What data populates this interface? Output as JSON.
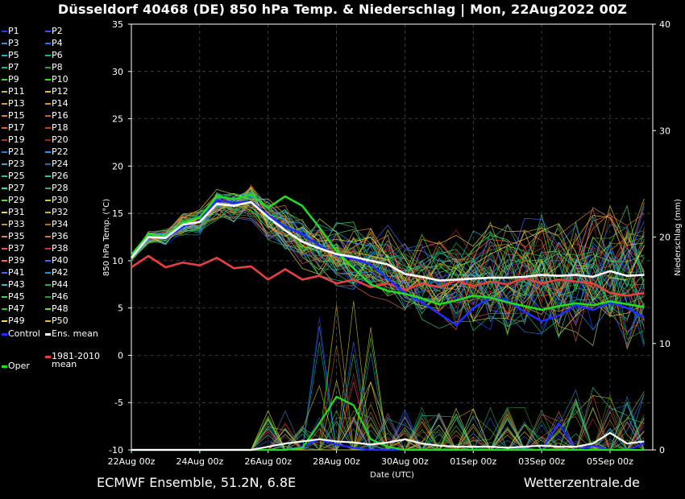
{
  "title": "Düsseldorf 40468 (DE)  850 hPa Temp. & Niederschlag | Mon, 22Aug2022 00Z",
  "footer": {
    "left": "ECMWF Ensemble, 51.2N, 6.8E",
    "right": "Wetterzentrale.de"
  },
  "legend": {
    "members": [
      "P1",
      "P2",
      "P3",
      "P4",
      "P5",
      "P6",
      "P7",
      "P8",
      "P9",
      "P10",
      "P11",
      "P12",
      "P13",
      "P14",
      "P15",
      "P16",
      "P17",
      "P18",
      "P19",
      "P20",
      "P21",
      "P22",
      "P23",
      "P24",
      "P25",
      "P26",
      "P27",
      "P28",
      "P29",
      "P30",
      "P31",
      "P32",
      "P33",
      "P34",
      "P35",
      "P36",
      "P37",
      "P38",
      "P39",
      "P40",
      "P41",
      "P42",
      "P43",
      "P44",
      "P45",
      "P46",
      "P47",
      "P48",
      "P49",
      "P50"
    ],
    "member_colors": [
      "#1f3bff",
      "#2a55ff",
      "#3a8fd0",
      "#1e6fff",
      "#20b0c0",
      "#10c060",
      "#00c0a0",
      "#20a040",
      "#40d040",
      "#30e020",
      "#c0c040",
      "#e0c020",
      "#d0a030",
      "#e09020",
      "#d08040",
      "#c06030",
      "#e06030",
      "#c04020",
      "#b03030",
      "#a02020",
      "#2080e0",
      "#3090f0",
      "#40a0c0",
      "#2070b0",
      "#30c0a0",
      "#20d090",
      "#40e0a0",
      "#30b060",
      "#50e040",
      "#c0d020",
      "#e0e030",
      "#d0b020",
      "#c09040",
      "#b07020",
      "#e08060",
      "#d07040",
      "#f05050",
      "#d03030",
      "#ff6060",
      "#4060ff",
      "#3070ff",
      "#2090e0",
      "#20c0d0",
      "#20b050",
      "#40d060",
      "#20a030",
      "#30c040",
      "#60e050",
      "#f0e040",
      "#e0c030"
    ],
    "control_label": "Control",
    "control_color": "#1f2bff",
    "mean_label": "Ens. mean",
    "mean_color": "#ffffff",
    "clim_label_1": "1981-2010",
    "clim_label_2": "mean",
    "clim_color": "#e84040",
    "oper_label": "Oper",
    "oper_color": "#20dd20"
  },
  "chart_data": {
    "type": "line",
    "title": "Düsseldorf 40468 (DE)  850 hPa Temp. & Niederschlag | Mon, 22Aug2022 00Z",
    "xlabel": "Date (UTC)",
    "ylabel": "850 hPa Temp. (°C)",
    "y2label": "Niederschlag (mm)",
    "ylim": [
      -10,
      35
    ],
    "y2lim": [
      0,
      40
    ],
    "yticks": [
      35,
      30,
      25,
      20,
      15,
      10,
      5,
      0,
      -5,
      -10
    ],
    "y2ticks": [
      40,
      30,
      20,
      10,
      0
    ],
    "xlim": [
      0,
      366
    ],
    "xtick_hours": [
      0,
      48,
      96,
      144,
      192,
      240,
      288,
      336
    ],
    "xtick_labels": [
      "22Aug 00z",
      "24Aug 00z",
      "26Aug 00z",
      "28Aug 00z",
      "30Aug 00z",
      "01Sep 00z",
      "03Sep 00z",
      "05Sep 00z"
    ],
    "grid": true,
    "x_hours": [
      0,
      12,
      24,
      36,
      48,
      60,
      72,
      84,
      96,
      108,
      120,
      132,
      144,
      156,
      168,
      180,
      192,
      204,
      216,
      228,
      240,
      252,
      264,
      276,
      288,
      300,
      312,
      324,
      336,
      348,
      360
    ],
    "series": [
      {
        "name": "Control",
        "color": "#1f2bff",
        "values": [
          10.5,
          12.7,
          12.3,
          13.6,
          14.2,
          16.4,
          16.1,
          16.3,
          14.8,
          13.6,
          12.8,
          11.6,
          10.6,
          10.2,
          9.6,
          8.1,
          6.6,
          5.6,
          4.4,
          3.2,
          5.0,
          6.1,
          5.8,
          4.6,
          3.6,
          4.2,
          5.3,
          4.8,
          5.6,
          5.0,
          4.0
        ],
        "precip": [
          0,
          0,
          0,
          0,
          0,
          0,
          0,
          0,
          0,
          0,
          0.3,
          1,
          0.5,
          0.2,
          0,
          0,
          0,
          0,
          0,
          0,
          0,
          0,
          0,
          0,
          0,
          2.5,
          0,
          0.4,
          0,
          0,
          0.6
        ]
      },
      {
        "name": "Ens. mean",
        "color": "#ffffff",
        "values": [
          10.3,
          12.5,
          12.4,
          13.8,
          14.1,
          16.0,
          15.8,
          16.2,
          14.6,
          13.2,
          12.0,
          11.3,
          10.7,
          10.4,
          10.0,
          9.6,
          8.6,
          8.3,
          7.9,
          8.0,
          8.1,
          8.2,
          8.2,
          8.3,
          8.5,
          8.4,
          8.5,
          8.3,
          8.9,
          8.4,
          8.5
        ],
        "precip": [
          0,
          0,
          0,
          0,
          0,
          0,
          0,
          0,
          0.3,
          0.6,
          0.8,
          1,
          0.8,
          0.7,
          0.5,
          0.7,
          1,
          0.6,
          0.4,
          0.3,
          0.3,
          0.3,
          0.2,
          0.3,
          0.4,
          0.3,
          0.3,
          0.6,
          1.6,
          0.6,
          0.8
        ]
      },
      {
        "name": "1981-2010 mean",
        "color": "#e84040",
        "values": [
          9.3,
          10.5,
          9.3,
          9.8,
          9.5,
          10.3,
          9.2,
          9.4,
          8.0,
          9.1,
          8.0,
          8.4,
          7.6,
          8.0,
          7.2,
          7.6,
          6.9,
          7.6,
          7.2,
          7.9,
          7.3,
          7.8,
          7.5,
          8.2,
          7.6,
          8.0,
          7.8,
          7.6,
          6.6,
          6.3,
          6.6
        ]
      },
      {
        "name": "Oper",
        "color": "#20dd20",
        "values": [
          10.6,
          12.8,
          12.5,
          14.0,
          14.6,
          16.8,
          16.5,
          17.0,
          15.6,
          16.8,
          15.8,
          13.5,
          11.0,
          9.2,
          7.5,
          6.8,
          6.5,
          6.0,
          5.4,
          5.8,
          6.3,
          6.1,
          5.6,
          5.2,
          4.8,
          5.2,
          5.5,
          5.3,
          5.7,
          5.4,
          5.1
        ],
        "precip": [
          0,
          0,
          0,
          0,
          0,
          0,
          0,
          0,
          0,
          0,
          0.2,
          2.5,
          5,
          4.2,
          1.0,
          0.3,
          0,
          0,
          0,
          0,
          0,
          0,
          0,
          0,
          0,
          0,
          0,
          0,
          0,
          0,
          0
        ]
      }
    ]
  }
}
